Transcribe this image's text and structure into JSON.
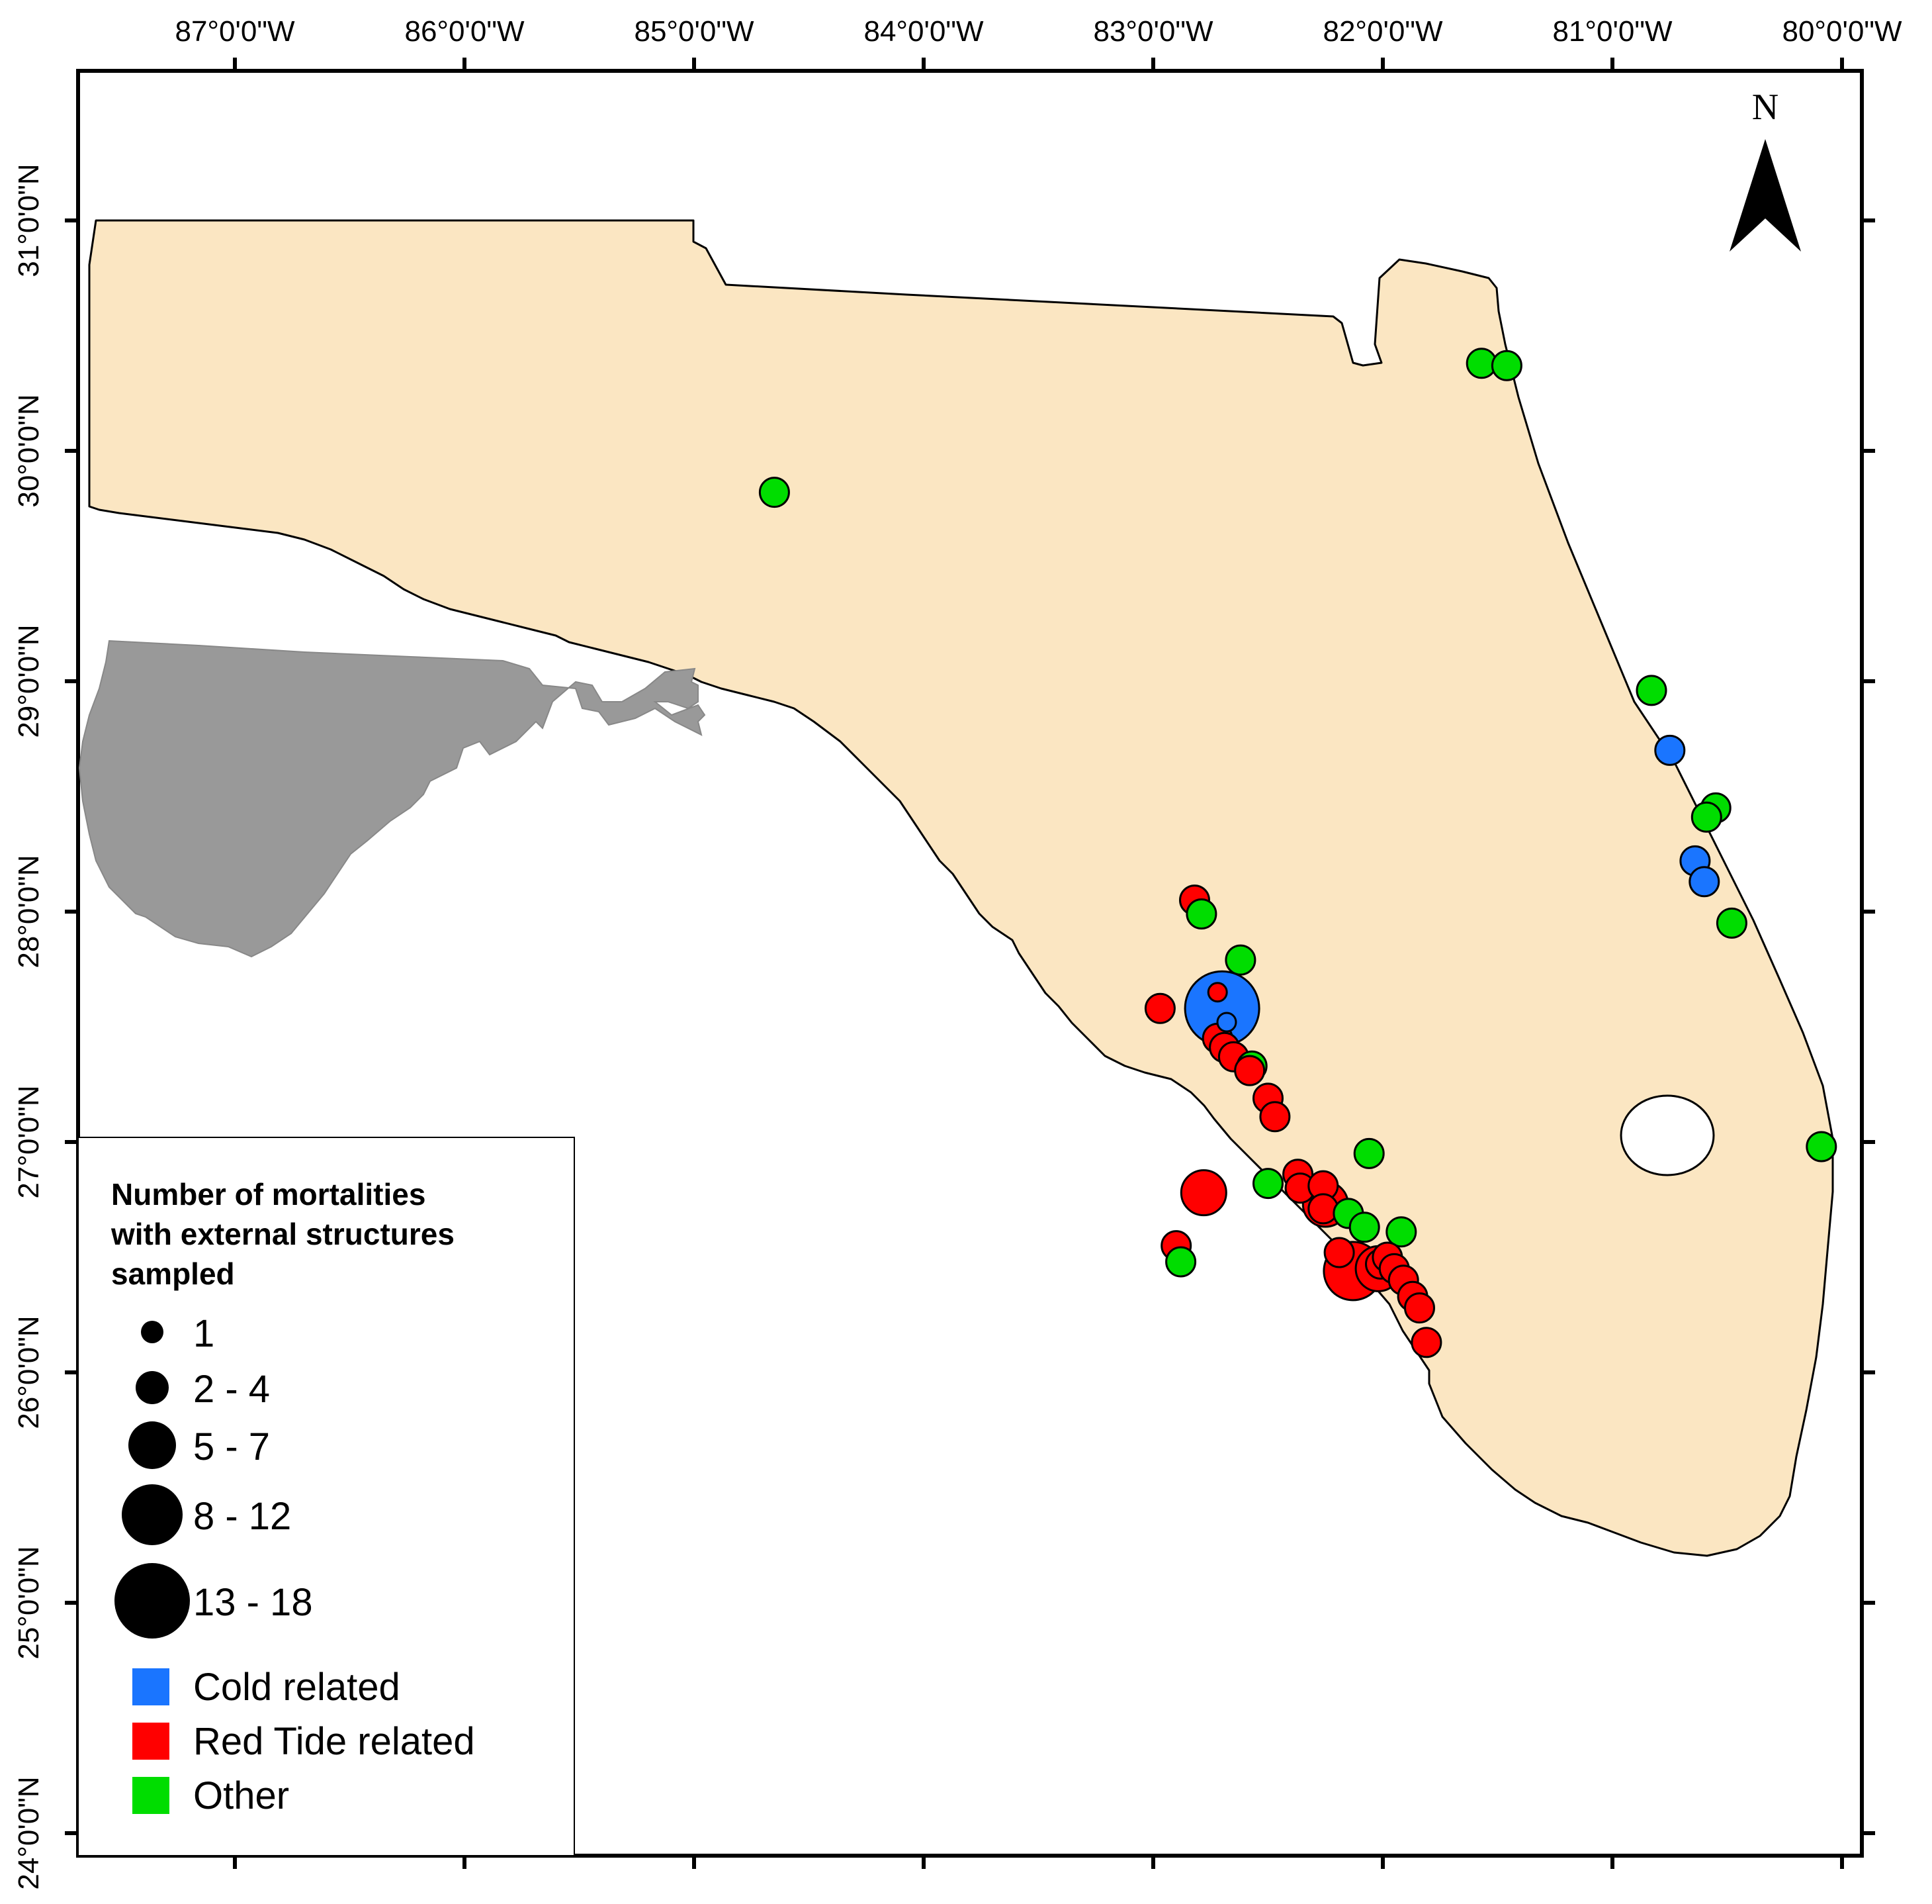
{
  "map": {
    "axes": {
      "lon_labels": [
        "87°0'0\"W",
        "86°0'0\"W",
        "85°0'0\"W",
        "84°0'0\"W",
        "83°0'0\"W",
        "82°0'0\"W",
        "81°0'0\"W",
        "80°0'0\"W"
      ],
      "lat_labels": [
        "31°0'0\"N",
        "30°0'0\"N",
        "29°0'0\"N",
        "28°0'0\"N",
        "27°0'0\"N",
        "26°0'0\"N",
        "25°0'0\"N",
        "24°0'0\"N"
      ]
    },
    "north_arrow": {
      "label": "N",
      "icon": "north-arrow-icon"
    },
    "colors": {
      "land": "#fbe6c2",
      "inset_land": "#999999",
      "cold": "#1a75ff",
      "red_tide": "#ff0000",
      "other": "#00dd00"
    },
    "legend": {
      "title_lines": [
        "Number of mortalities",
        "with external structures",
        "sampled"
      ],
      "size_classes": [
        "1",
        "2 - 4",
        "5 - 7",
        "8 - 12",
        "13 - 18"
      ],
      "categories": [
        {
          "label": "Cold related",
          "color": "#1a75ff"
        },
        {
          "label": "Red Tide related",
          "color": "#ff0000"
        },
        {
          "label": "Other",
          "color": "#00dd00"
        }
      ]
    },
    "points": [
      {
        "lon": -84.65,
        "lat": 29.82,
        "category": "other",
        "size_class": 2
      },
      {
        "lon": -81.57,
        "lat": 30.38,
        "category": "other",
        "size_class": 2
      },
      {
        "lon": -81.46,
        "lat": 30.37,
        "category": "other",
        "size_class": 2
      },
      {
        "lon": -80.83,
        "lat": 28.96,
        "category": "other",
        "size_class": 2
      },
      {
        "lon": -80.75,
        "lat": 28.7,
        "category": "cold",
        "size_class": 2
      },
      {
        "lon": -80.55,
        "lat": 28.45,
        "category": "other",
        "size_class": 2
      },
      {
        "lon": -80.59,
        "lat": 28.41,
        "category": "other",
        "size_class": 2
      },
      {
        "lon": -80.64,
        "lat": 28.22,
        "category": "cold",
        "size_class": 2
      },
      {
        "lon": -80.6,
        "lat": 28.13,
        "category": "cold",
        "size_class": 2
      },
      {
        "lon": -80.48,
        "lat": 27.95,
        "category": "other",
        "size_class": 2
      },
      {
        "lon": -80.09,
        "lat": 26.98,
        "category": "other",
        "size_class": 2
      },
      {
        "lon": -82.82,
        "lat": 28.05,
        "category": "red_tide",
        "size_class": 2
      },
      {
        "lon": -82.79,
        "lat": 27.99,
        "category": "other",
        "size_class": 2
      },
      {
        "lon": -82.62,
        "lat": 27.79,
        "category": "other",
        "size_class": 2
      },
      {
        "lon": -82.7,
        "lat": 27.58,
        "category": "cold",
        "size_class": 5
      },
      {
        "lon": -82.68,
        "lat": 27.52,
        "category": "cold",
        "size_class": 1
      },
      {
        "lon": -82.72,
        "lat": 27.65,
        "category": "red_tide",
        "size_class": 1
      },
      {
        "lon": -82.97,
        "lat": 27.58,
        "category": "red_tide",
        "size_class": 2
      },
      {
        "lon": -82.72,
        "lat": 27.45,
        "category": "red_tide",
        "size_class": 2
      },
      {
        "lon": -82.69,
        "lat": 27.41,
        "category": "red_tide",
        "size_class": 2
      },
      {
        "lon": -82.65,
        "lat": 27.37,
        "category": "red_tide",
        "size_class": 2
      },
      {
        "lon": -82.57,
        "lat": 27.33,
        "category": "other",
        "size_class": 2
      },
      {
        "lon": -82.58,
        "lat": 27.31,
        "category": "red_tide",
        "size_class": 2
      },
      {
        "lon": -82.5,
        "lat": 27.19,
        "category": "red_tide",
        "size_class": 2
      },
      {
        "lon": -82.47,
        "lat": 27.11,
        "category": "red_tide",
        "size_class": 2
      },
      {
        "lon": -82.06,
        "lat": 26.95,
        "category": "other",
        "size_class": 2
      },
      {
        "lon": -82.37,
        "lat": 26.86,
        "category": "red_tide",
        "size_class": 2
      },
      {
        "lon": -82.36,
        "lat": 26.8,
        "category": "red_tide",
        "size_class": 2
      },
      {
        "lon": -82.5,
        "lat": 26.82,
        "category": "other",
        "size_class": 2
      },
      {
        "lon": -82.78,
        "lat": 26.78,
        "category": "red_tide",
        "size_class": 3
      },
      {
        "lon": -82.26,
        "lat": 26.81,
        "category": "red_tide",
        "size_class": 2
      },
      {
        "lon": -82.25,
        "lat": 26.73,
        "category": "red_tide",
        "size_class": 3
      },
      {
        "lon": -82.26,
        "lat": 26.71,
        "category": "red_tide",
        "size_class": 2
      },
      {
        "lon": -82.15,
        "lat": 26.69,
        "category": "other",
        "size_class": 2
      },
      {
        "lon": -82.08,
        "lat": 26.63,
        "category": "other",
        "size_class": 2
      },
      {
        "lon": -81.92,
        "lat": 26.61,
        "category": "other",
        "size_class": 2
      },
      {
        "lon": -82.9,
        "lat": 26.55,
        "category": "red_tide",
        "size_class": 2
      },
      {
        "lon": -82.88,
        "lat": 26.48,
        "category": "other",
        "size_class": 2
      },
      {
        "lon": -82.19,
        "lat": 26.52,
        "category": "red_tide",
        "size_class": 2
      },
      {
        "lon": -82.13,
        "lat": 26.44,
        "category": "red_tide",
        "size_class": 4
      },
      {
        "lon": -82.02,
        "lat": 26.45,
        "category": "red_tide",
        "size_class": 3
      },
      {
        "lon": -82.01,
        "lat": 26.47,
        "category": "red_tide",
        "size_class": 2
      },
      {
        "lon": -81.98,
        "lat": 26.5,
        "category": "red_tide",
        "size_class": 2
      },
      {
        "lon": -81.95,
        "lat": 26.45,
        "category": "red_tide",
        "size_class": 2
      },
      {
        "lon": -81.91,
        "lat": 26.4,
        "category": "red_tide",
        "size_class": 2
      },
      {
        "lon": -81.87,
        "lat": 26.33,
        "category": "red_tide",
        "size_class": 2
      },
      {
        "lon": -81.84,
        "lat": 26.28,
        "category": "red_tide",
        "size_class": 2
      },
      {
        "lon": -81.81,
        "lat": 26.13,
        "category": "red_tide",
        "size_class": 2
      }
    ]
  }
}
